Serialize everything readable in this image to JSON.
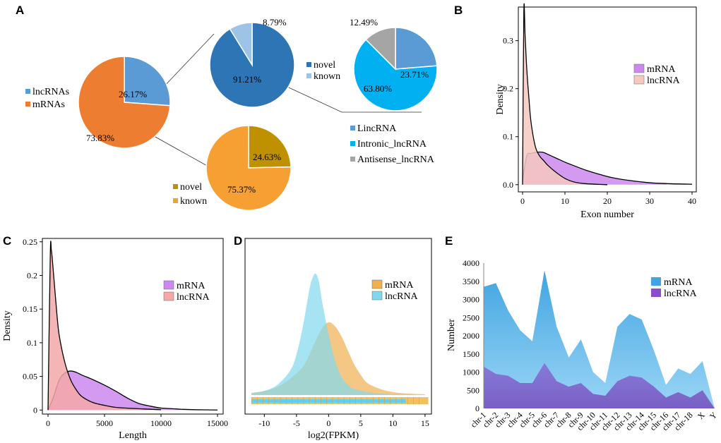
{
  "chart_data": [
    {
      "panel": "A",
      "type": "pie",
      "title": "",
      "pies": [
        {
          "id": "main",
          "slices": [
            {
              "label": "lncRNAs",
              "value": 26.17,
              "text": "26.17%",
              "color": "#5b9bd5"
            },
            {
              "label": "mRNAs",
              "value": 73.83,
              "text": "73.83%",
              "color": "#ed7d31"
            }
          ]
        },
        {
          "id": "lnc_novelty",
          "slices": [
            {
              "label": "novel",
              "value": 91.21,
              "text": "91.21%",
              "color": "#2e75b6"
            },
            {
              "label": "known",
              "value": 8.79,
              "text": "8.79%",
              "color": "#9dc3e6"
            }
          ]
        },
        {
          "id": "lnc_type",
          "slices": [
            {
              "label": "LincRNA",
              "value": 23.71,
              "text": "23.71%",
              "color": "#5b9bd5"
            },
            {
              "label": "Intronic_lncRNA",
              "value": 63.8,
              "text": "63.80%",
              "color": "#00b0f0"
            },
            {
              "label": "Antisense_lncRNA",
              "value": 12.49,
              "text": "12.49%",
              "color": "#a5a5a5"
            }
          ]
        },
        {
          "id": "mrna_novelty",
          "slices": [
            {
              "label": "novel",
              "value": 24.63,
              "text": "24.63%",
              "color": "#bf9000"
            },
            {
              "label": "known",
              "value": 75.37,
              "text": "75.37%",
              "color": "#f6a033"
            }
          ]
        }
      ]
    },
    {
      "panel": "B",
      "type": "area",
      "xlabel": "Exon number",
      "ylabel": "Density",
      "xlim": [
        -1,
        41
      ],
      "ylim": [
        -0.015,
        0.37
      ],
      "xticks": [
        0,
        10,
        20,
        30,
        40
      ],
      "yticks": [
        0.0,
        0.1,
        0.2,
        0.3
      ],
      "ytick_labels": [
        "0.0",
        "0.1",
        "0.2",
        "0.3"
      ],
      "series": [
        {
          "name": "mRNA",
          "color": "#cc88ee",
          "x": [
            0,
            1,
            2,
            3,
            4,
            5,
            6,
            8,
            10,
            12,
            15,
            18,
            21,
            25,
            30,
            35,
            40
          ],
          "y": [
            0.01,
            0.06,
            0.065,
            0.067,
            0.068,
            0.067,
            0.063,
            0.055,
            0.047,
            0.04,
            0.03,
            0.022,
            0.015,
            0.009,
            0.004,
            0.002,
            0.001
          ]
        },
        {
          "name": "lncRNA",
          "color": "#f5c8c0",
          "x": [
            0,
            0.3,
            0.6,
            1,
            1.5,
            2,
            3,
            4,
            5,
            6,
            8,
            10,
            12,
            15,
            20
          ],
          "y": [
            0.0,
            0.36,
            0.31,
            0.24,
            0.18,
            0.13,
            0.08,
            0.06,
            0.05,
            0.04,
            0.025,
            0.013,
            0.006,
            0.002,
            0.0
          ]
        }
      ]
    },
    {
      "panel": "C",
      "type": "area",
      "xlabel": "Length",
      "ylabel": "Density",
      "xlim": [
        -500,
        15500
      ],
      "ylim": [
        -0.006,
        0.255
      ],
      "xticks": [
        0,
        5000,
        10000,
        15000
      ],
      "yticks": [
        0.0,
        0.05,
        0.1,
        0.15,
        0.2,
        0.25
      ],
      "ytick_labels": [
        "0",
        "0.05",
        "0.1",
        "0.15",
        "0.2",
        "0.25"
      ],
      "series": [
        {
          "name": "mRNA",
          "color": "#cc88ee",
          "x": [
            0,
            500,
            1000,
            1500,
            2000,
            2500,
            3000,
            4000,
            5000,
            6000,
            7000,
            8000,
            9000,
            10000,
            11000,
            12000,
            13000,
            15000
          ],
          "y": [
            0.0,
            0.02,
            0.045,
            0.055,
            0.058,
            0.056,
            0.052,
            0.045,
            0.037,
            0.028,
            0.018,
            0.01,
            0.006,
            0.003,
            0.002,
            0.001,
            0.0005,
            0.0
          ]
        },
        {
          "name": "lncRNA",
          "color": "#f5a8a8",
          "x": [
            0,
            200,
            300,
            500,
            800,
            1000,
            1500,
            2000,
            2500,
            3000,
            4000,
            5000,
            6000,
            8000,
            10000
          ],
          "y": [
            0.0,
            0.23,
            0.237,
            0.2,
            0.14,
            0.11,
            0.07,
            0.045,
            0.03,
            0.02,
            0.011,
            0.007,
            0.004,
            0.002,
            0.0005
          ]
        }
      ]
    },
    {
      "panel": "D",
      "type": "area",
      "xlabel": "log2(FPKM)",
      "ylabel": "",
      "xlim": [
        -13,
        16
      ],
      "xticks": [
        -10,
        -5,
        0,
        5,
        10,
        15
      ],
      "series": [
        {
          "name": "mRNA",
          "color": "#f0b050",
          "x": [
            -12,
            -10,
            -8,
            -6,
            -4,
            -3,
            -2,
            -1,
            0,
            1,
            2,
            3,
            4,
            5,
            6,
            8,
            10,
            12,
            15
          ],
          "y": [
            0.01,
            0.02,
            0.04,
            0.08,
            0.14,
            0.2,
            0.27,
            0.33,
            0.36,
            0.34,
            0.29,
            0.22,
            0.15,
            0.1,
            0.06,
            0.03,
            0.015,
            0.008,
            0.004
          ]
        },
        {
          "name": "lncRNA",
          "color": "#80d8f0",
          "x": [
            -12,
            -10,
            -8,
            -6,
            -5,
            -4,
            -3,
            -2.5,
            -2,
            -1.5,
            -1,
            0,
            1,
            2,
            3,
            4,
            6,
            8,
            10,
            15
          ],
          "y": [
            0.01,
            0.02,
            0.05,
            0.12,
            0.2,
            0.34,
            0.52,
            0.58,
            0.6,
            0.56,
            0.46,
            0.3,
            0.17,
            0.09,
            0.05,
            0.03,
            0.015,
            0.008,
            0.004,
            0.0
          ]
        }
      ]
    },
    {
      "panel": "E",
      "type": "area",
      "xlabel": "",
      "ylabel": "Number",
      "ylim": [
        0,
        4000
      ],
      "yticks": [
        0,
        500,
        1000,
        1500,
        2000,
        2500,
        3000,
        3500,
        4000
      ],
      "categories": [
        "chr-1",
        "chr-2",
        "chr-3",
        "chr-4",
        "chr-5",
        "chr-6",
        "chr-7",
        "chr-8",
        "chr-9",
        "chr-10",
        "chr-11",
        "chr-12",
        "chr-13",
        "chr-14",
        "chr-15",
        "chr-16",
        "chr-17",
        "chr-18",
        "X",
        "Y"
      ],
      "series": [
        {
          "name": "mRNA",
          "color": "#3fa4e0",
          "values": [
            3350,
            3450,
            2700,
            2150,
            1850,
            3800,
            2250,
            1400,
            1900,
            1000,
            700,
            2250,
            2600,
            2450,
            1600,
            650,
            1100,
            950,
            1300,
            0
          ]
        },
        {
          "name": "lncRNA",
          "color": "#8a4fc8",
          "values": [
            1150,
            950,
            900,
            700,
            700,
            1250,
            750,
            600,
            700,
            400,
            350,
            750,
            900,
            850,
            600,
            300,
            450,
            300,
            500,
            0
          ]
        }
      ]
    }
  ],
  "panels": {
    "A": "A",
    "B": "B",
    "C": "C",
    "D": "D",
    "E": "E"
  },
  "legends": {
    "A_main": [
      "lncRNAs",
      "mRNAs"
    ],
    "A_lnc": [
      "novel",
      "known"
    ],
    "A_type": [
      "LincRNA",
      "Intronic_lncRNA",
      "Antisense_lncRNA"
    ],
    "A_mrna": [
      "novel",
      "known"
    ],
    "B": [
      "mRNA",
      "lncRNA"
    ],
    "C": [
      "mRNA",
      "lncRNA"
    ],
    "D": [
      "mRNA",
      "lncRNA"
    ],
    "E": [
      "mRNA",
      "lncRNA"
    ]
  }
}
